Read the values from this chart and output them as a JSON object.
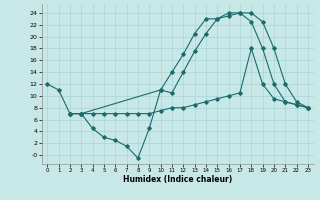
{
  "bg_color": "#c8e8e8",
  "line_color": "#1a6b6b",
  "grid_color": "#aad4d4",
  "xlabel": "Humidex (Indice chaleur)",
  "xlim": [
    -0.5,
    23.5
  ],
  "ylim": [
    -1.5,
    25.5
  ],
  "xticks": [
    0,
    1,
    2,
    3,
    4,
    5,
    6,
    7,
    8,
    9,
    10,
    11,
    12,
    13,
    14,
    15,
    16,
    17,
    18,
    19,
    20,
    21,
    22,
    23
  ],
  "yticks": [
    0,
    2,
    4,
    6,
    8,
    10,
    12,
    14,
    16,
    18,
    20,
    22,
    24
  ],
  "curve1_x": [
    0,
    1,
    2,
    3,
    4,
    5,
    6,
    7,
    8,
    9,
    10,
    11,
    12,
    13,
    14,
    15,
    16,
    17,
    18,
    19,
    20,
    21,
    22,
    23
  ],
  "curve1_y": [
    12,
    11,
    7,
    7,
    4.5,
    3.0,
    2.5,
    1.5,
    -0.5,
    4.5,
    11,
    10.5,
    14,
    17.5,
    20.5,
    23,
    23.5,
    24,
    24,
    22.5,
    18,
    12,
    9,
    8
  ],
  "curve2_x": [
    2,
    3,
    10,
    11,
    12,
    13,
    14,
    15,
    16,
    17,
    18,
    19,
    20,
    21,
    22,
    23
  ],
  "curve2_y": [
    7,
    7,
    11,
    14,
    17,
    20.5,
    23,
    23,
    24,
    24,
    22.5,
    18,
    12,
    9,
    8.5,
    8
  ],
  "curve3_x": [
    2,
    3,
    4,
    5,
    6,
    7,
    8,
    9,
    10,
    11,
    12,
    13,
    14,
    15,
    16,
    17,
    18,
    19,
    20,
    21,
    22,
    23
  ],
  "curve3_y": [
    7,
    7,
    7,
    7,
    7,
    7,
    7,
    7,
    7.5,
    8,
    8,
    8.5,
    9,
    9.5,
    10,
    10.5,
    18,
    12,
    9.5,
    9,
    8.5,
    8
  ]
}
